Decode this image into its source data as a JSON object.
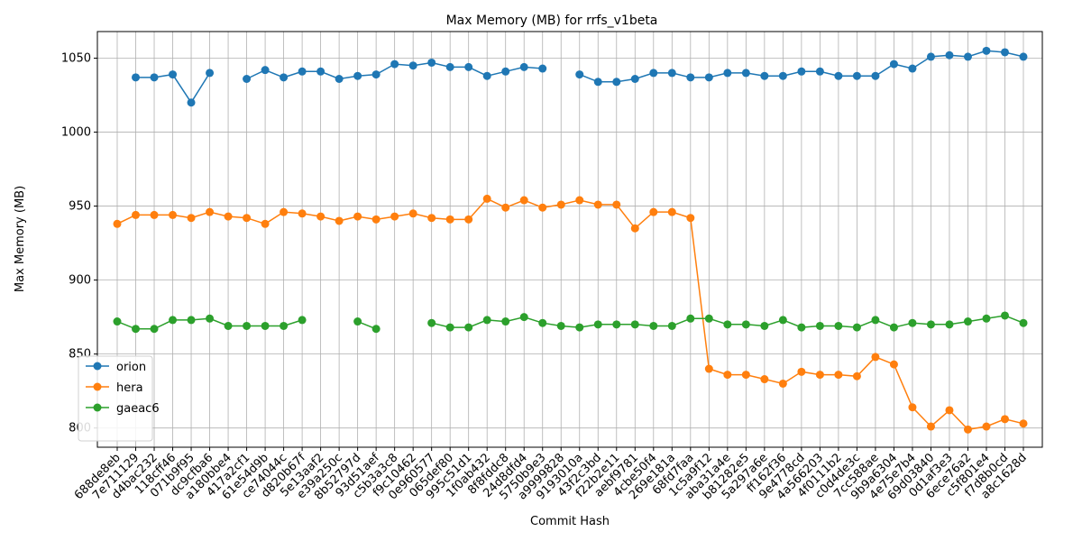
{
  "chart_data": {
    "type": "line",
    "title": "Max Memory (MB) for rrfs_v1beta",
    "xlabel": "Commit Hash",
    "ylabel": "Max Memory (MB)",
    "ylim": [
      787,
      1068
    ],
    "yticks": [
      800,
      850,
      900,
      950,
      1000,
      1050
    ],
    "grid": true,
    "legend_position": "lower-left",
    "categories": [
      "688de8eb",
      "7e711129",
      "d4bac232",
      "118cff46",
      "071b9f95",
      "dc9cfba6",
      "a180bbe4",
      "417a2cf1",
      "61e54d9b",
      "ce74044c",
      "d820b67f",
      "5e13aaf2",
      "e39a250c",
      "8b52797d",
      "93d51aef",
      "c5b3a3c8",
      "f9c10462",
      "0e960577",
      "065def80",
      "995c51d1",
      "1f0ab432",
      "8f8fddc8",
      "24d8dfd4",
      "5750b9e3",
      "a9999828",
      "9193010a",
      "43f2c3bd",
      "f22b2e11",
      "aebf9781",
      "4cbe50f4",
      "269e181a",
      "68fd7faa",
      "1c5a9f12",
      "aba31a4e",
      "b81282e5",
      "5a297a6e",
      "ff162f36",
      "9e4778cd",
      "4a566203",
      "4f0111b2",
      "c0d4de3c",
      "7cc588ae",
      "9b9a6304",
      "4e75e7b4",
      "69d03840",
      "0d1af3e3",
      "6ece76a2",
      "c5f801e4",
      "f7d8b0cd",
      "a8c1628d"
    ],
    "series": [
      {
        "name": "orion",
        "color": "#1f77b4",
        "values": [
          null,
          1037,
          1037,
          1039,
          1020,
          1040,
          null,
          1036,
          1042,
          1037,
          1041,
          1041,
          1036,
          1038,
          1039,
          1046,
          1045,
          1047,
          1044,
          1044,
          1038,
          1041,
          1044,
          1043,
          null,
          1039,
          1034,
          1034,
          1036,
          1040,
          1040,
          1037,
          1037,
          1040,
          1040,
          1038,
          1038,
          1041,
          1041,
          1038,
          1038,
          1038,
          1046,
          1043,
          1051,
          1052,
          1051,
          1055,
          1054,
          1051
        ]
      },
      {
        "name": "hera",
        "color": "#ff7f0e",
        "values": [
          938,
          944,
          944,
          944,
          942,
          946,
          943,
          942,
          938,
          946,
          945,
          943,
          940,
          943,
          941,
          943,
          945,
          942,
          941,
          941,
          955,
          949,
          954,
          949,
          951,
          954,
          951,
          951,
          935,
          946,
          946,
          942,
          840,
          836,
          836,
          833,
          830,
          838,
          836,
          836,
          835,
          848,
          843,
          814,
          801,
          812,
          799,
          801,
          806,
          803
        ]
      },
      {
        "name": "gaeac6",
        "color": "#2ca02c",
        "values": [
          872,
          867,
          867,
          873,
          873,
          874,
          869,
          869,
          869,
          869,
          873,
          null,
          null,
          872,
          867,
          null,
          null,
          871,
          868,
          868,
          873,
          872,
          875,
          871,
          869,
          868,
          870,
          870,
          870,
          869,
          869,
          874,
          874,
          870,
          870,
          869,
          873,
          868,
          869,
          869,
          868,
          873,
          868,
          871,
          870,
          870,
          872,
          874,
          876,
          871
        ]
      }
    ]
  }
}
